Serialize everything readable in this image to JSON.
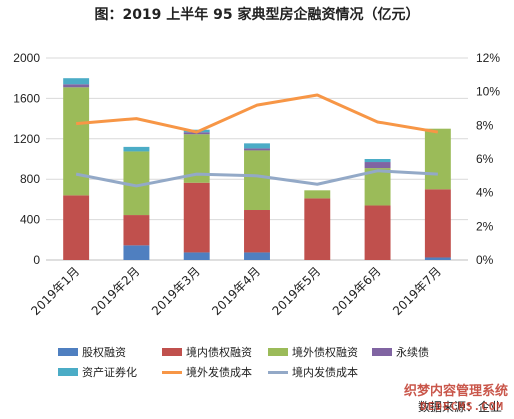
{
  "chart_data": {
    "type": "bar",
    "title": "图：2019 上半年 95 家典型房企融资情况（亿元）",
    "categories": [
      "2019年1月",
      "2019年2月",
      "2019年3月",
      "2019年4月",
      "2019年5月",
      "2019年6月",
      "2019年7月"
    ],
    "stacked": true,
    "y_left": {
      "ylim": [
        0,
        2000
      ],
      "ticks": [
        "0",
        "400",
        "800",
        "1200",
        "1600",
        "2000"
      ]
    },
    "y_right": {
      "ylim": [
        0,
        12
      ],
      "ticks": [
        "0%",
        "2%",
        "4%",
        "6%",
        "8%",
        "10%",
        "12%"
      ]
    },
    "series": [
      {
        "name": "股权融资",
        "type": "bar",
        "axis": "left",
        "color": "#4f7fc0",
        "values": [
          0,
          145,
          75,
          75,
          0,
          0,
          25
        ]
      },
      {
        "name": "境内债权融资",
        "type": "bar",
        "axis": "left",
        "color": "#c0504d",
        "values": [
          640,
          300,
          690,
          420,
          610,
          540,
          675
        ]
      },
      {
        "name": "境外债权融资",
        "type": "bar",
        "axis": "left",
        "color": "#9bbb59",
        "values": [
          1070,
          630,
          480,
          590,
          80,
          370,
          600
        ]
      },
      {
        "name": "永续债",
        "type": "bar",
        "axis": "left",
        "color": "#8064a2",
        "values": [
          30,
          0,
          20,
          20,
          0,
          60,
          0
        ]
      },
      {
        "name": "资产证券化",
        "type": "bar",
        "axis": "left",
        "color": "#4bacc6",
        "values": [
          60,
          45,
          25,
          50,
          0,
          30,
          0
        ]
      },
      {
        "name": "境外发债成本",
        "type": "line",
        "axis": "right",
        "color": "#f79646",
        "values": [
          8.1,
          8.4,
          7.6,
          9.2,
          9.8,
          8.2,
          7.6
        ]
      },
      {
        "name": "境内发债成本",
        "type": "line",
        "axis": "right",
        "color": "#93a9c7",
        "values": [
          5.1,
          4.4,
          5.1,
          5.0,
          4.5,
          5.3,
          5.1
        ]
      }
    ],
    "grid": true,
    "legend": "bottom"
  },
  "legend_items": [
    {
      "label": "股权融资",
      "kind": "box",
      "color": "#4f7fc0"
    },
    {
      "label": "境内债权融资",
      "kind": "box",
      "color": "#c0504d"
    },
    {
      "label": "境外债权融资",
      "kind": "box",
      "color": "#9bbb59"
    },
    {
      "label": "永续债",
      "kind": "box",
      "color": "#8064a2"
    },
    {
      "label": "资产证券化",
      "kind": "box",
      "color": "#4bacc6"
    },
    {
      "label": "境外发债成本",
      "kind": "line",
      "color": "#f79646"
    },
    {
      "label": "境内发债成本",
      "kind": "line",
      "color": "#93a9c7"
    }
  ],
  "source": "数据来源：企业",
  "watermark_line1": "织梦内容管理系统",
  "watermark_line2": "DEDECMS.COM"
}
